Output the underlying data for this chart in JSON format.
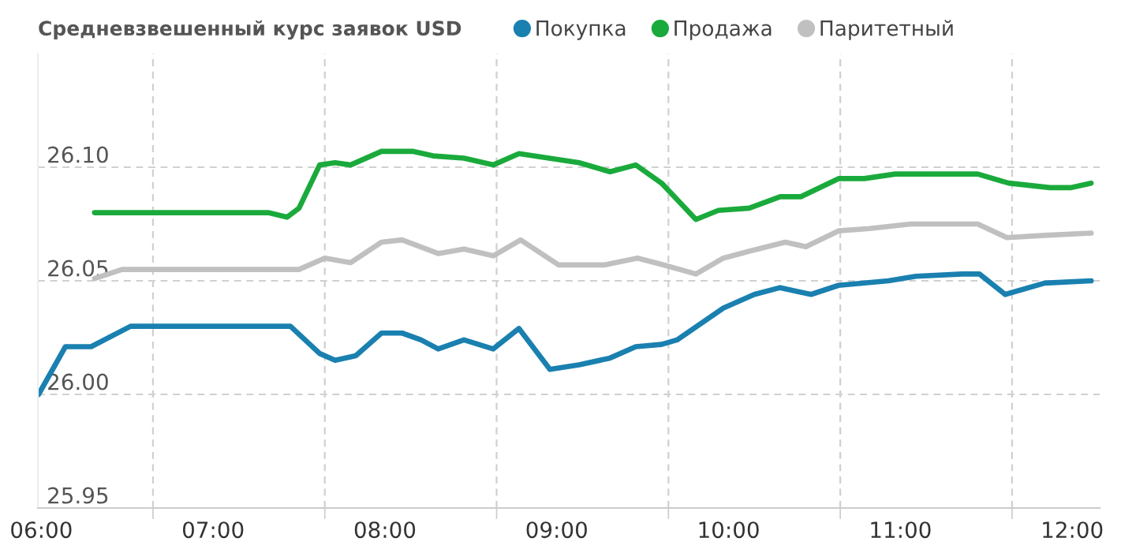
{
  "chart_data": {
    "type": "line",
    "title": "Средневзвешенный курс заявок USD",
    "xlim": [
      5.98,
      12.16
    ],
    "ylim": [
      25.95,
      26.15
    ],
    "xticks": [
      {
        "value": 6,
        "label": "06:00"
      },
      {
        "value": 7,
        "label": "07:00"
      },
      {
        "value": 8,
        "label": "08:00"
      },
      {
        "value": 9,
        "label": "09:00"
      },
      {
        "value": 10,
        "label": "10:00"
      },
      {
        "value": 11,
        "label": "11:00"
      },
      {
        "value": 12,
        "label": "12:00"
      },
      {
        "value": 6.65,
        "label": null
      },
      {
        "value": 7.65,
        "label": null
      },
      {
        "value": 8.65,
        "label": null
      },
      {
        "value": 9.65,
        "label": null
      },
      {
        "value": 10.65,
        "label": null
      },
      {
        "value": 11.65,
        "label": null
      }
    ],
    "yticks": [
      {
        "value": 25.95,
        "label": "25.95"
      },
      {
        "value": 26.0,
        "label": "26.00"
      },
      {
        "value": 26.05,
        "label": "26.05"
      },
      {
        "value": 26.1,
        "label": "26.10"
      }
    ],
    "grid": true,
    "legend": "top",
    "marker": "none",
    "line_style": "solid",
    "series": [
      {
        "name": "Покупка",
        "color": "#1a80b0",
        "x": [
          5.984,
          6.14,
          6.29,
          6.52,
          6.65,
          7.38,
          7.45,
          7.62,
          7.71,
          7.83,
          7.98,
          8.1,
          8.21,
          8.31,
          8.46,
          8.63,
          8.78,
          8.96,
          9.13,
          9.31,
          9.46,
          9.61,
          9.7,
          9.97,
          10.15,
          10.3,
          10.48,
          10.64,
          10.93,
          11.09,
          11.36,
          11.46,
          11.61,
          11.84,
          12.11
        ],
        "values": [
          26.0,
          26.021,
          26.021,
          26.03,
          26.03,
          26.03,
          26.03,
          26.018,
          26.015,
          26.017,
          26.027,
          26.027,
          26.024,
          26.02,
          26.024,
          26.02,
          26.029,
          26.011,
          26.013,
          26.016,
          26.021,
          26.022,
          26.024,
          26.038,
          26.044,
          26.047,
          26.044,
          26.048,
          26.05,
          26.052,
          26.053,
          26.053,
          26.044,
          26.049,
          26.05
        ]
      },
      {
        "name": "Продажа",
        "color": "#1aaa3c",
        "x": [
          6.31,
          7.32,
          7.43,
          7.5,
          7.62,
          7.71,
          7.8,
          7.98,
          8.16,
          8.28,
          8.46,
          8.63,
          8.78,
          9.13,
          9.31,
          9.46,
          9.61,
          9.81,
          9.94,
          10.12,
          10.3,
          10.42,
          10.64,
          10.79,
          10.97,
          11.18,
          11.45,
          11.63,
          11.87,
          11.99,
          12.11
        ],
        "values": [
          26.08,
          26.08,
          26.078,
          26.082,
          26.101,
          26.102,
          26.101,
          26.107,
          26.107,
          26.105,
          26.104,
          26.101,
          26.106,
          26.102,
          26.098,
          26.101,
          26.093,
          26.077,
          26.081,
          26.082,
          26.087,
          26.087,
          26.095,
          26.095,
          26.097,
          26.097,
          26.097,
          26.093,
          26.091,
          26.091,
          26.093
        ]
      },
      {
        "name": "Паритетный",
        "color": "#c0c0c0",
        "x": [
          6.31,
          6.47,
          7.5,
          7.65,
          7.8,
          7.98,
          8.1,
          8.31,
          8.46,
          8.63,
          8.79,
          9.01,
          9.13,
          9.28,
          9.47,
          9.62,
          9.81,
          9.97,
          10.12,
          10.33,
          10.45,
          10.64,
          10.82,
          11.06,
          11.45,
          11.62,
          11.84,
          12.11
        ],
        "values": [
          26.051,
          26.055,
          26.055,
          26.06,
          26.058,
          26.067,
          26.068,
          26.062,
          26.064,
          26.061,
          26.068,
          26.057,
          26.057,
          26.057,
          26.06,
          26.057,
          26.053,
          26.06,
          26.063,
          26.067,
          26.065,
          26.072,
          26.073,
          26.075,
          26.075,
          26.069,
          26.07,
          26.071
        ]
      }
    ]
  }
}
